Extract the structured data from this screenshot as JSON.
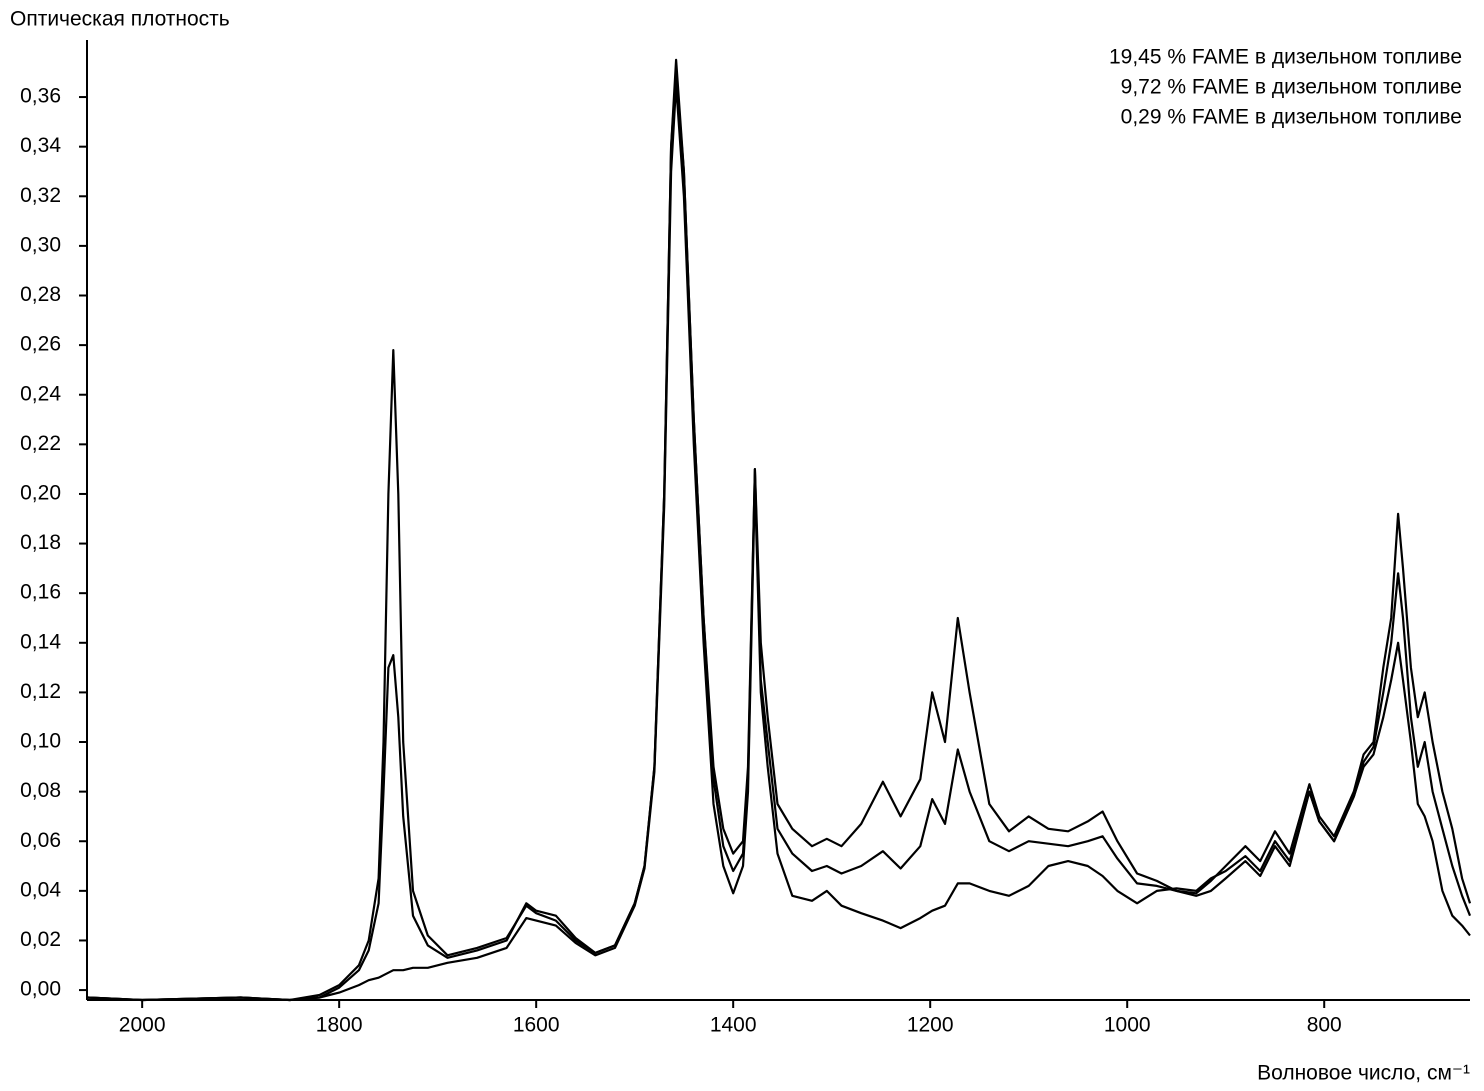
{
  "chart_data": {
    "type": "line",
    "y_label": "Оптическая плотность",
    "x_label": "Волновое число, см⁻¹",
    "legend": "upper right",
    "xlim": [
      2056,
      652
    ],
    "ylim": [
      -0.004,
      0.383
    ],
    "xticks": [
      2000,
      1800,
      1600,
      1400,
      1200,
      1000,
      800
    ],
    "yticks": [
      {
        "value": 0.0,
        "label": "0,00"
      },
      {
        "value": 0.02,
        "label": "0,02"
      },
      {
        "value": 0.04,
        "label": "0,04"
      },
      {
        "value": 0.06,
        "label": "0,06"
      },
      {
        "value": 0.08,
        "label": "0,08"
      },
      {
        "value": 0.1,
        "label": "0,10"
      },
      {
        "value": 0.12,
        "label": "0,12"
      },
      {
        "value": 0.14,
        "label": "0,14"
      },
      {
        "value": 0.16,
        "label": "0,16"
      },
      {
        "value": 0.18,
        "label": "0,18"
      },
      {
        "value": 0.2,
        "label": "0,20"
      },
      {
        "value": 0.22,
        "label": "0,22"
      },
      {
        "value": 0.24,
        "label": "0,24"
      },
      {
        "value": 0.26,
        "label": "0,26"
      },
      {
        "value": 0.28,
        "label": "0,28"
      },
      {
        "value": 0.3,
        "label": "0,30"
      },
      {
        "value": 0.32,
        "label": "0,32"
      },
      {
        "value": 0.34,
        "label": "0,34"
      },
      {
        "value": 0.36,
        "label": "0,36"
      }
    ],
    "x": [
      2056,
      2000,
      1900,
      1850,
      1820,
      1800,
      1780,
      1770,
      1760,
      1755,
      1750,
      1745,
      1740,
      1735,
      1725,
      1710,
      1690,
      1660,
      1630,
      1610,
      1600,
      1580,
      1560,
      1540,
      1520,
      1500,
      1490,
      1480,
      1470,
      1463,
      1458,
      1450,
      1440,
      1430,
      1420,
      1410,
      1400,
      1390,
      1385,
      1378,
      1372,
      1365,
      1355,
      1340,
      1320,
      1305,
      1290,
      1270,
      1248,
      1230,
      1210,
      1198,
      1185,
      1172,
      1160,
      1140,
      1120,
      1100,
      1080,
      1060,
      1040,
      1025,
      1010,
      990,
      970,
      950,
      930,
      915,
      900,
      880,
      865,
      850,
      835,
      815,
      805,
      790,
      770,
      760,
      750,
      740,
      732,
      725,
      720,
      712,
      705,
      698,
      690,
      680,
      670,
      660,
      652
    ],
    "series": [
      {
        "name": "19,45 % FAME в дизельном топливе",
        "color": "#000000",
        "values": [
          -0.003,
          -0.004,
          -0.003,
          -0.004,
          -0.002,
          0.002,
          0.01,
          0.02,
          0.045,
          0.1,
          0.2,
          0.258,
          0.2,
          0.1,
          0.04,
          0.022,
          0.014,
          0.017,
          0.021,
          0.034,
          0.031,
          0.028,
          0.02,
          0.015,
          0.018,
          0.035,
          0.05,
          0.09,
          0.2,
          0.34,
          0.375,
          0.33,
          0.23,
          0.15,
          0.09,
          0.065,
          0.055,
          0.06,
          0.09,
          0.21,
          0.14,
          0.11,
          0.075,
          0.065,
          0.058,
          0.061,
          0.058,
          0.067,
          0.084,
          0.07,
          0.085,
          0.12,
          0.1,
          0.15,
          0.12,
          0.075,
          0.064,
          0.07,
          0.065,
          0.064,
          0.068,
          0.072,
          0.06,
          0.047,
          0.044,
          0.04,
          0.039,
          0.044,
          0.05,
          0.058,
          0.052,
          0.064,
          0.055,
          0.083,
          0.07,
          0.062,
          0.08,
          0.095,
          0.1,
          0.13,
          0.15,
          0.192,
          0.17,
          0.13,
          0.11,
          0.12,
          0.1,
          0.08,
          0.065,
          0.045,
          0.035
        ]
      },
      {
        "name": "9,72 % FAME в дизельном топливе",
        "color": "#000000",
        "values": [
          -0.003,
          -0.004,
          -0.003,
          -0.004,
          -0.003,
          0.001,
          0.008,
          0.016,
          0.035,
          0.08,
          0.13,
          0.135,
          0.11,
          0.07,
          0.03,
          0.018,
          0.013,
          0.016,
          0.02,
          0.035,
          0.032,
          0.03,
          0.021,
          0.015,
          0.018,
          0.035,
          0.05,
          0.09,
          0.2,
          0.34,
          0.37,
          0.33,
          0.23,
          0.15,
          0.085,
          0.058,
          0.048,
          0.055,
          0.085,
          0.21,
          0.125,
          0.1,
          0.065,
          0.055,
          0.048,
          0.05,
          0.047,
          0.05,
          0.056,
          0.049,
          0.058,
          0.077,
          0.067,
          0.097,
          0.08,
          0.06,
          0.056,
          0.06,
          0.059,
          0.058,
          0.06,
          0.062,
          0.053,
          0.043,
          0.042,
          0.04,
          0.038,
          0.04,
          0.045,
          0.052,
          0.046,
          0.058,
          0.05,
          0.08,
          0.068,
          0.06,
          0.078,
          0.092,
          0.098,
          0.12,
          0.14,
          0.168,
          0.15,
          0.11,
          0.09,
          0.1,
          0.08,
          0.065,
          0.05,
          0.038,
          0.03
        ]
      },
      {
        "name": "0,29 % FAME в дизельном топливе",
        "color": "#000000",
        "values": [
          -0.003,
          -0.004,
          -0.003,
          -0.004,
          -0.003,
          -0.001,
          0.002,
          0.004,
          0.005,
          0.006,
          0.007,
          0.008,
          0.008,
          0.008,
          0.009,
          0.009,
          0.011,
          0.013,
          0.017,
          0.029,
          0.028,
          0.026,
          0.019,
          0.014,
          0.017,
          0.034,
          0.049,
          0.088,
          0.195,
          0.33,
          0.365,
          0.32,
          0.22,
          0.14,
          0.075,
          0.05,
          0.039,
          0.05,
          0.08,
          0.205,
          0.12,
          0.09,
          0.055,
          0.038,
          0.036,
          0.04,
          0.034,
          0.031,
          0.028,
          0.025,
          0.029,
          0.032,
          0.034,
          0.043,
          0.043,
          0.04,
          0.038,
          0.042,
          0.05,
          0.052,
          0.05,
          0.046,
          0.04,
          0.035,
          0.04,
          0.041,
          0.04,
          0.045,
          0.048,
          0.054,
          0.048,
          0.06,
          0.052,
          0.08,
          0.068,
          0.06,
          0.078,
          0.09,
          0.095,
          0.11,
          0.125,
          0.14,
          0.125,
          0.1,
          0.075,
          0.07,
          0.06,
          0.04,
          0.03,
          0.026,
          0.022
        ]
      }
    ]
  }
}
